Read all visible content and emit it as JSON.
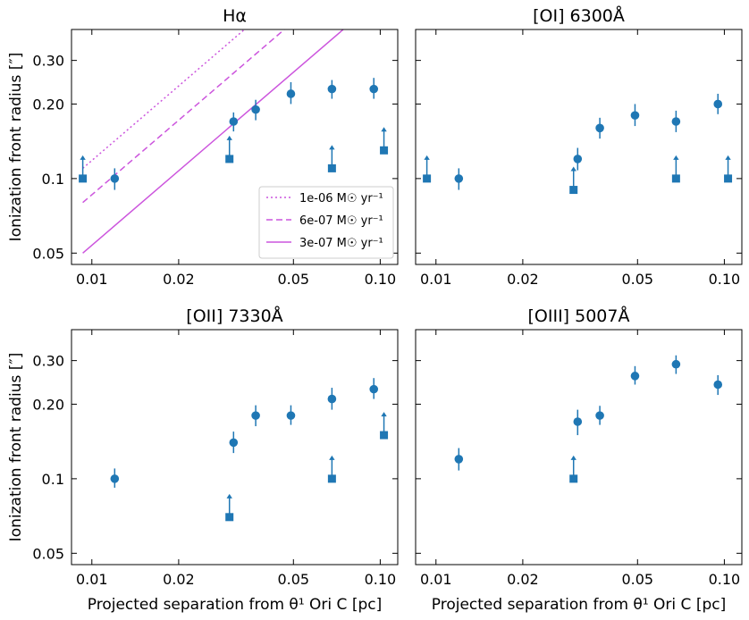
{
  "figure": {
    "xlabel": "Projected separation from θ¹ Ori C [pc]",
    "ylabel": "Ionization front radius [″]",
    "xticks": [
      {
        "v": 0.01,
        "label": "0.01"
      },
      {
        "v": 0.02,
        "label": "0.02"
      },
      {
        "v": 0.05,
        "label": "0.05"
      },
      {
        "v": 0.1,
        "label": "0.10"
      }
    ],
    "yticks": [
      {
        "v": 0.05,
        "label": "0.05"
      },
      {
        "v": 0.1,
        "label": "0.1"
      },
      {
        "v": 0.2,
        "label": "0.20"
      },
      {
        "v": 0.3,
        "label": "0.30"
      }
    ],
    "colors": {
      "points": "#1f77b4",
      "models": "#cc55dd"
    }
  },
  "chart_data": [
    {
      "type": "scatter",
      "title": "Hα",
      "xscale": "log",
      "yscale": "log",
      "xlim": [
        0.0085,
        0.115
      ],
      "ylim": [
        0.045,
        0.4
      ],
      "measured": [
        {
          "x": 0.012,
          "y": 0.1,
          "lo": 0.09,
          "hi": 0.11
        },
        {
          "x": 0.031,
          "y": 0.17,
          "lo": 0.155,
          "hi": 0.185
        },
        {
          "x": 0.037,
          "y": 0.19,
          "lo": 0.172,
          "hi": 0.208
        },
        {
          "x": 0.049,
          "y": 0.22,
          "lo": 0.2,
          "hi": 0.245
        },
        {
          "x": 0.068,
          "y": 0.23,
          "lo": 0.21,
          "hi": 0.25
        },
        {
          "x": 0.095,
          "y": 0.23,
          "lo": 0.21,
          "hi": 0.255
        }
      ],
      "lower_limits": [
        {
          "x": 0.0093,
          "y": 0.1
        },
        {
          "x": 0.03,
          "y": 0.12
        },
        {
          "x": 0.068,
          "y": 0.11
        },
        {
          "x": 0.103,
          "y": 0.13
        }
      ],
      "models": [
        {
          "name": "1e-06 M☉ yr⁻¹",
          "style": "dotted",
          "x0": 0.0093,
          "y0": 0.11,
          "slope": 1.0
        },
        {
          "name": "6e-07 M☉ yr⁻¹",
          "style": "dashed",
          "x0": 0.0093,
          "y0": 0.08,
          "slope": 1.0
        },
        {
          "name": "3e-07 M☉ yr⁻¹",
          "style": "solid",
          "x0": 0.0093,
          "y0": 0.05,
          "slope": 1.0
        }
      ],
      "legend": {
        "location": "lower-right"
      }
    },
    {
      "type": "scatter",
      "title": "[OI] 6300Å",
      "xscale": "log",
      "yscale": "log",
      "xlim": [
        0.0085,
        0.115
      ],
      "ylim": [
        0.045,
        0.4
      ],
      "measured": [
        {
          "x": 0.012,
          "y": 0.1,
          "lo": 0.09,
          "hi": 0.11
        },
        {
          "x": 0.031,
          "y": 0.12,
          "lo": 0.108,
          "hi": 0.133
        },
        {
          "x": 0.037,
          "y": 0.16,
          "lo": 0.145,
          "hi": 0.176
        },
        {
          "x": 0.049,
          "y": 0.18,
          "lo": 0.163,
          "hi": 0.2
        },
        {
          "x": 0.068,
          "y": 0.17,
          "lo": 0.154,
          "hi": 0.188
        },
        {
          "x": 0.095,
          "y": 0.2,
          "lo": 0.182,
          "hi": 0.22
        }
      ],
      "lower_limits": [
        {
          "x": 0.0093,
          "y": 0.1
        },
        {
          "x": 0.03,
          "y": 0.09
        },
        {
          "x": 0.068,
          "y": 0.1
        },
        {
          "x": 0.103,
          "y": 0.1
        }
      ],
      "models": []
    },
    {
      "type": "scatter",
      "title": "[OII] 7330Å",
      "xscale": "log",
      "yscale": "log",
      "xlim": [
        0.0085,
        0.115
      ],
      "ylim": [
        0.045,
        0.4
      ],
      "measured": [
        {
          "x": 0.012,
          "y": 0.1,
          "lo": 0.092,
          "hi": 0.11
        },
        {
          "x": 0.031,
          "y": 0.14,
          "lo": 0.127,
          "hi": 0.155
        },
        {
          "x": 0.037,
          "y": 0.18,
          "lo": 0.163,
          "hi": 0.198
        },
        {
          "x": 0.049,
          "y": 0.18,
          "lo": 0.165,
          "hi": 0.198
        },
        {
          "x": 0.068,
          "y": 0.21,
          "lo": 0.19,
          "hi": 0.233
        },
        {
          "x": 0.095,
          "y": 0.23,
          "lo": 0.21,
          "hi": 0.255
        }
      ],
      "lower_limits": [
        {
          "x": 0.03,
          "y": 0.07
        },
        {
          "x": 0.068,
          "y": 0.1
        },
        {
          "x": 0.103,
          "y": 0.15
        }
      ],
      "models": []
    },
    {
      "type": "scatter",
      "title": "[OIII] 5007Å",
      "xscale": "log",
      "yscale": "log",
      "xlim": [
        0.0085,
        0.115
      ],
      "ylim": [
        0.045,
        0.4
      ],
      "measured": [
        {
          "x": 0.012,
          "y": 0.12,
          "lo": 0.108,
          "hi": 0.133
        },
        {
          "x": 0.031,
          "y": 0.17,
          "lo": 0.15,
          "hi": 0.19
        },
        {
          "x": 0.037,
          "y": 0.18,
          "lo": 0.165,
          "hi": 0.197
        },
        {
          "x": 0.049,
          "y": 0.26,
          "lo": 0.24,
          "hi": 0.285
        },
        {
          "x": 0.068,
          "y": 0.29,
          "lo": 0.265,
          "hi": 0.315
        },
        {
          "x": 0.095,
          "y": 0.24,
          "lo": 0.218,
          "hi": 0.262
        }
      ],
      "lower_limits": [
        {
          "x": 0.03,
          "y": 0.1
        }
      ],
      "models": []
    }
  ]
}
